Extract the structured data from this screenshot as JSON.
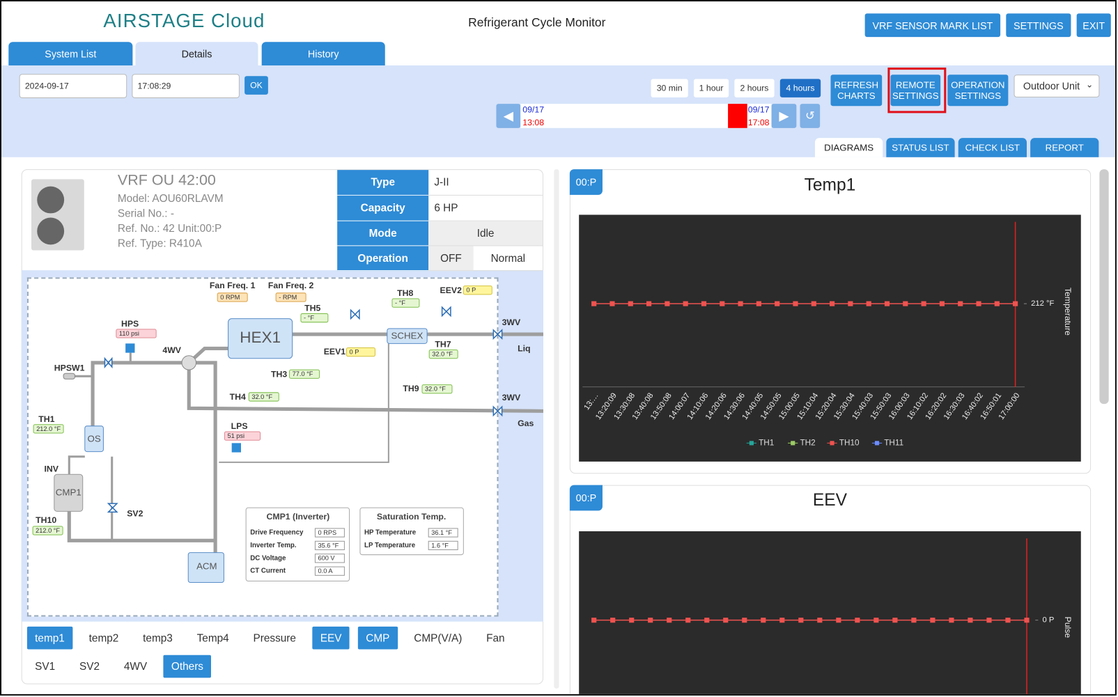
{
  "header": {
    "logo": "AIRSTAGE Cloud",
    "title": "Refrigerant Cycle Monitor",
    "buttons": [
      "VRF SENSOR MARK LIST",
      "SETTINGS",
      "EXIT"
    ]
  },
  "tabs": [
    "System List",
    "Details",
    "History"
  ],
  "toolbar": {
    "date": "2024-09-17",
    "time": "17:08:29",
    "ok": "OK",
    "ranges": [
      "30 min",
      "1 hour",
      "2 hours",
      "4 hours"
    ],
    "start_date": "09/17",
    "start_time": "13:08",
    "end_date": "09/17",
    "end_time": "17:08",
    "buttons": [
      "REFRESH CHARTS",
      "REMOTE SETTINGS",
      "OPERATION SETTINGS"
    ],
    "unit_select": "Outdoor Unit",
    "view_tabs": [
      "DIAGRAMS",
      "STATUS LIST",
      "CHECK LIST",
      "REPORT"
    ]
  },
  "unit": {
    "name": "VRF OU 42:00",
    "model": "Model: AOU60RLAVM",
    "serial": "Serial No.: -",
    "ref_no": "Ref. No.: 42 Unit:00:P",
    "ref_type": "Ref. Type: R410A",
    "table": [
      [
        "Type",
        "J-II"
      ],
      [
        "Capacity",
        "6 HP"
      ],
      [
        "Mode",
        "Idle"
      ],
      [
        "Operation",
        "OFF",
        "Normal"
      ]
    ]
  },
  "diagram": {
    "labels": [
      "Fan Freq. 1",
      "Fan Freq. 2",
      "HEX1",
      "TH5",
      "TH8",
      "EEV2",
      "HPS",
      "4WV",
      "EEV1",
      "SCHEX",
      "TH7",
      "3WV",
      "Liq",
      "HPSW1",
      "TH3",
      "TH4",
      "TH9",
      "3WV",
      "Gas",
      "TH1",
      "OS",
      "LPS",
      "INV",
      "CMP1",
      "SV2",
      "TH10",
      "ACM"
    ],
    "readings": [
      "0 RPM",
      "- RPM",
      "- °F",
      "- °F",
      "0 P",
      "110 psi",
      "0 P",
      "32.0 °F",
      "77.0 °F",
      "32.0 °F",
      "32.0 °F",
      "212.0 °F",
      "51 psi",
      "212.0 °F"
    ],
    "cmp_box": {
      "title": "CMP1 (Inverter)",
      "rows": [
        [
          "Drive Frequency",
          "0 RPS"
        ],
        [
          "Inverter Temp.",
          "35.6 °F"
        ],
        [
          "DC Voltage",
          "600 V"
        ],
        [
          "CT Current",
          "0.0 A"
        ]
      ]
    },
    "sat_box": {
      "title": "Saturation Temp.",
      "rows": [
        [
          "HP Temperature",
          "36.1 °F"
        ],
        [
          "LP Temperature",
          "1.6 °F"
        ]
      ]
    }
  },
  "filters": [
    {
      "label": "temp1",
      "active": true
    },
    {
      "label": "temp2",
      "active": false
    },
    {
      "label": "temp3",
      "active": false
    },
    {
      "label": "Temp4",
      "active": false
    },
    {
      "label": "Pressure",
      "active": false
    },
    {
      "label": "EEV",
      "active": true
    },
    {
      "label": "CMP",
      "active": true
    },
    {
      "label": "CMP(V/A)",
      "active": false
    },
    {
      "label": "Fan",
      "active": false
    },
    {
      "label": "SV1",
      "active": false
    },
    {
      "label": "SV2",
      "active": false
    },
    {
      "label": "4WV",
      "active": false
    },
    {
      "label": "Others",
      "active": true
    }
  ],
  "charts": [
    {
      "type": "line",
      "badge": "00:P",
      "title": "Temp1",
      "y_label": "Temperature",
      "ylim": [
        211,
        213
      ],
      "yticks": [
        {
          "value": 212,
          "label": "212 °F"
        }
      ],
      "categories": [
        "13:…",
        "13:20:09",
        "13:30:08",
        "13:40:08",
        "13:50:08",
        "14:00:07",
        "14:10:06",
        "14:20:06",
        "14:30:06",
        "14:40:05",
        "14:50:05",
        "15:00:05",
        "15:10:04",
        "15:20:04",
        "15:30:04",
        "15:40:03",
        "15:50:03",
        "16:00:03",
        "16:10:02",
        "16:20:02",
        "16:30:03",
        "16:40:02",
        "16:50:01",
        "17:00:00"
      ],
      "series": [
        {
          "name": "TH1",
          "color": "#26a69a"
        },
        {
          "name": "TH2",
          "color": "#9ccc65"
        },
        {
          "name": "TH10",
          "color": "#ef5350",
          "values": [
            212,
            212,
            212,
            212,
            212,
            212,
            212,
            212,
            212,
            212,
            212,
            212,
            212,
            212,
            212,
            212,
            212,
            212,
            212,
            212,
            212,
            212,
            212,
            212
          ]
        },
        {
          "name": "TH11",
          "color": "#6b8cff"
        }
      ]
    },
    {
      "type": "line",
      "badge": "00:P",
      "title": "EEV",
      "y_label": "Pulse",
      "ylim": [
        -1,
        1
      ],
      "yticks": [
        {
          "value": 0,
          "label": "0 P"
        }
      ],
      "color": "#ef5350",
      "values": [
        0,
        0,
        0,
        0,
        0,
        0,
        0,
        0,
        0,
        0,
        0,
        0,
        0,
        0,
        0,
        0,
        0,
        0,
        0,
        0,
        0,
        0,
        0,
        0
      ]
    }
  ]
}
